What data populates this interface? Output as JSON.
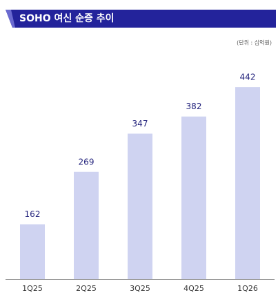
{
  "chart_data": {
    "type": "bar",
    "title": "SOHO 여신 순증 추이",
    "unit": "(단위 : 십억원)",
    "categories": [
      "1Q25",
      "2Q25",
      "3Q25",
      "4Q25",
      "1Q26"
    ],
    "values": [
      162,
      269,
      347,
      382,
      442
    ],
    "color": "#cfd3f1",
    "ylim": [
      50,
      500
    ]
  }
}
